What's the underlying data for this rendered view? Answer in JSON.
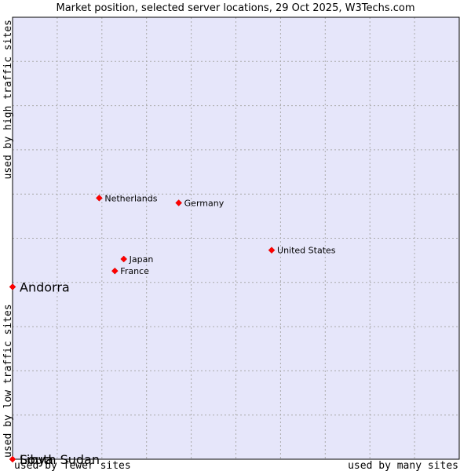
{
  "chart_data": {
    "type": "scatter",
    "title": "Market position, selected server locations, 29 Oct 2025, W3Techs.com",
    "axis_labels": {
      "x_low": "used by fewer sites",
      "x_high": "used by many sites",
      "y_low": "used by low traffic sites",
      "y_high": "used by high traffic sites"
    },
    "xlim": [
      0,
      10
    ],
    "ylim": [
      0,
      10
    ],
    "grid": true,
    "points": [
      {
        "name": "Netherlands",
        "x": 1.94,
        "y": 5.91,
        "highlight": false
      },
      {
        "name": "Germany",
        "x": 3.72,
        "y": 5.8,
        "highlight": false
      },
      {
        "name": "United States",
        "x": 5.8,
        "y": 4.73,
        "highlight": false
      },
      {
        "name": "Japan",
        "x": 2.49,
        "y": 4.53,
        "highlight": false
      },
      {
        "name": "France",
        "x": 2.29,
        "y": 4.26,
        "highlight": false
      },
      {
        "name": "Andorra",
        "x": 0.0,
        "y": 3.9,
        "highlight": true
      },
      {
        "name": "South Sudan",
        "x": 0.0,
        "y": 0.0,
        "highlight": true
      },
      {
        "name": "Libya",
        "x": 0.0,
        "y": 0.0,
        "highlight": true
      }
    ],
    "colors": {
      "plot_background": "#e6e6fa",
      "grid": "#aaaaaa",
      "border": "#000000",
      "marker": "#ff0000",
      "text": "#000000"
    }
  }
}
